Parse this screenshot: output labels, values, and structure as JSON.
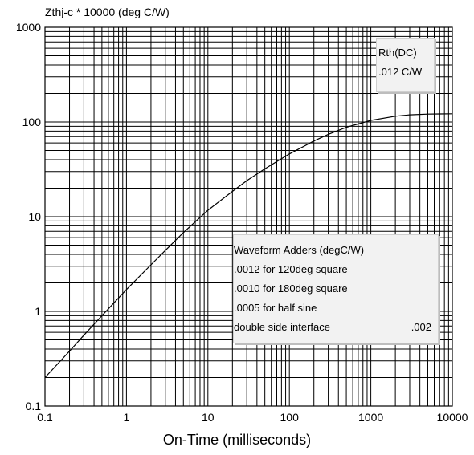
{
  "chart_data": {
    "type": "line",
    "ylabel": "Zthj-c * 10000 (deg C/W)",
    "xlabel": "On-Time (milliseconds)",
    "xscale": "log",
    "yscale": "log",
    "xlim": [
      0.1,
      10000
    ],
    "ylim": [
      0.1,
      1000
    ],
    "grid": true,
    "x_ticks": [
      "0.1",
      "1",
      "10",
      "100",
      "1000",
      "10000"
    ],
    "y_ticks": [
      "0.1",
      "1",
      "10",
      "100",
      "1000"
    ],
    "series": [
      {
        "x": [
          0.1,
          0.2,
          0.3,
          0.5,
          1,
          2,
          3,
          5,
          10,
          20,
          30,
          50,
          100,
          200,
          300,
          500,
          1000,
          2000,
          3000,
          5000,
          7000,
          10000
        ],
        "y": [
          0.2,
          0.38,
          0.56,
          0.9,
          1.7,
          3.1,
          4.4,
          6.8,
          11.7,
          18.5,
          24,
          32,
          46,
          63,
          74,
          88,
          104,
          115,
          119,
          121,
          121.5,
          122
        ]
      }
    ]
  },
  "rth_box": {
    "line1": "Rth(DC)",
    "line2": ".012 C/W"
  },
  "adders_box": {
    "title": "Waveform Adders (degC/W)",
    "line1": ".0012 for 120deg square",
    "line2": ".0010 for 180deg square",
    "line3": ".0005 for half sine",
    "line4_label": "double side interface",
    "line4_value": ".002"
  }
}
